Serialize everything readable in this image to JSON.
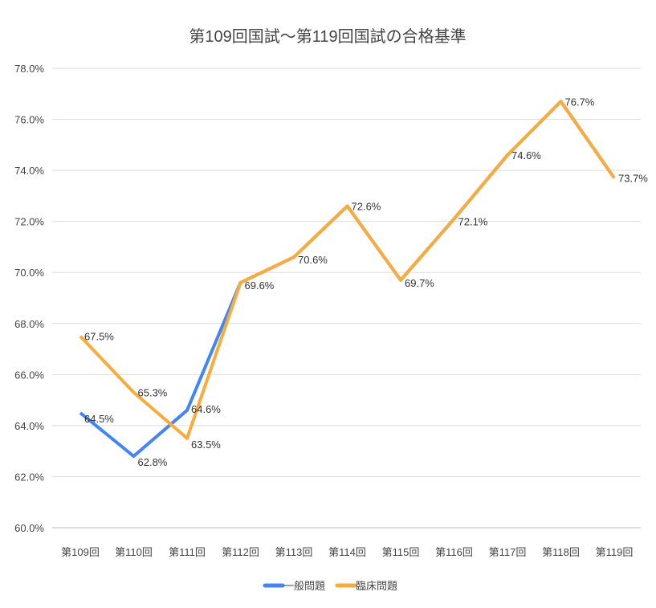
{
  "chart_data": {
    "type": "line",
    "title": "第109回国試～第119回国試の合格基準",
    "categories": [
      "第109回",
      "第110回",
      "第111回",
      "第112回",
      "第113回",
      "第114回",
      "第115回",
      "第116回",
      "第117回",
      "第118回",
      "第119回"
    ],
    "series": [
      {
        "name": "一般問題",
        "color": "#4285f4",
        "values": [
          64.5,
          62.8,
          64.6,
          69.6,
          70.6,
          72.6,
          69.7,
          72.1,
          74.6,
          76.7,
          73.7
        ],
        "labels_shown": [
          true,
          true,
          true,
          false,
          false,
          false,
          false,
          false,
          false,
          false,
          false
        ]
      },
      {
        "name": "臨床問題",
        "color": "#fbaa3c",
        "values": [
          67.5,
          65.3,
          63.5,
          69.6,
          70.6,
          72.6,
          69.7,
          72.1,
          74.6,
          76.7,
          73.7
        ],
        "labels_shown": [
          true,
          true,
          true,
          true,
          true,
          true,
          true,
          true,
          true,
          true,
          true
        ]
      }
    ],
    "ylim": [
      60,
      78
    ],
    "yticks": [
      "60.0%",
      "62.0%",
      "64.0%",
      "66.0%",
      "68.0%",
      "70.0%",
      "72.0%",
      "74.0%",
      "76.0%",
      "78.0%"
    ],
    "grid": true,
    "legend": "bottom"
  }
}
